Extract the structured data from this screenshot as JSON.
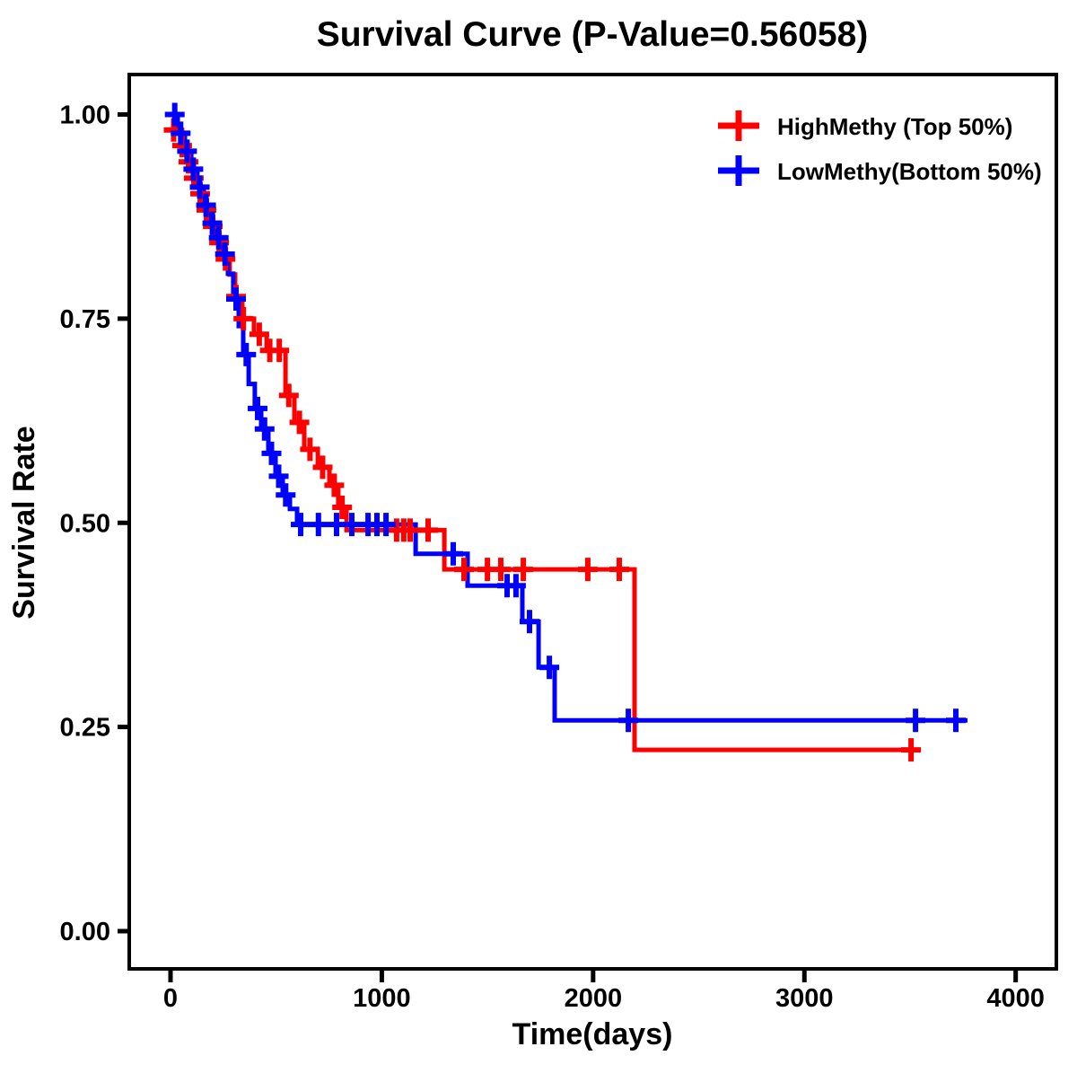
{
  "page": {
    "background": "#ffffff",
    "text_color": "#000000"
  },
  "chart_data": {
    "type": "line",
    "subtype": "kaplan-meier-step-survival",
    "title": "Survival Curve (P-Value=0.56058)",
    "p_value": "0.56058",
    "xlabel": "Time(days)",
    "ylabel": "Survival Rate",
    "xlim": [
      0,
      4000
    ],
    "ylim": [
      0.0,
      1.0
    ],
    "grid": false,
    "legend_position": "top-right-inside",
    "x_tick_values": [
      0,
      1000,
      2000,
      3000,
      4000
    ],
    "x_tick_labels": [
      "0",
      "1000",
      "2000",
      "3000",
      "4000"
    ],
    "y_tick_values": [
      0.0,
      0.25,
      0.5,
      0.75,
      1.0
    ],
    "y_tick_labels": [
      "0.00",
      "0.25",
      "0.50",
      "0.75",
      "1.00"
    ],
    "series": [
      {
        "name": "HighMethy (Top 50%)",
        "color": "#ff0000",
        "marker": "plus-censor",
        "steps": [
          [
            0,
            1.0
          ],
          [
            30,
            0.981
          ],
          [
            55,
            0.962
          ],
          [
            81,
            0.942
          ],
          [
            106,
            0.922
          ],
          [
            136,
            0.903
          ],
          [
            166,
            0.883
          ],
          [
            195,
            0.863
          ],
          [
            225,
            0.843
          ],
          [
            255,
            0.823
          ],
          [
            280,
            0.804
          ],
          [
            306,
            0.777
          ],
          [
            340,
            0.75
          ],
          [
            395,
            0.731
          ],
          [
            455,
            0.711
          ],
          [
            544,
            0.656
          ],
          [
            586,
            0.623
          ],
          [
            633,
            0.59
          ],
          [
            697,
            0.568
          ],
          [
            752,
            0.546
          ],
          [
            794,
            0.519
          ],
          [
            833,
            0.491
          ],
          [
            1296,
            0.443
          ],
          [
            2196,
            0.222
          ],
          [
            3547,
            0.222
          ]
        ],
        "censors": [
          [
            15,
            0.981
          ],
          [
            55,
            0.962
          ],
          [
            85,
            0.942
          ],
          [
            110,
            0.922
          ],
          [
            140,
            0.903
          ],
          [
            170,
            0.883
          ],
          [
            200,
            0.863
          ],
          [
            230,
            0.843
          ],
          [
            260,
            0.823
          ],
          [
            310,
            0.777
          ],
          [
            345,
            0.75
          ],
          [
            420,
            0.731
          ],
          [
            470,
            0.711
          ],
          [
            515,
            0.711
          ],
          [
            560,
            0.656
          ],
          [
            610,
            0.623
          ],
          [
            660,
            0.59
          ],
          [
            720,
            0.568
          ],
          [
            775,
            0.546
          ],
          [
            812,
            0.519
          ],
          [
            1070,
            0.491
          ],
          [
            1104,
            0.491
          ],
          [
            1134,
            0.491
          ],
          [
            1219,
            0.491
          ],
          [
            1389,
            0.443
          ],
          [
            1500,
            0.443
          ],
          [
            1563,
            0.443
          ],
          [
            1670,
            0.443
          ],
          [
            1975,
            0.443
          ],
          [
            2124,
            0.443
          ],
          [
            3505,
            0.222
          ]
        ]
      },
      {
        "name": "LowMethy(Bottom 50%)",
        "color": "#0000ff",
        "marker": "plus-censor",
        "steps": [
          [
            0,
            1.0
          ],
          [
            34,
            0.977
          ],
          [
            68,
            0.955
          ],
          [
            98,
            0.933
          ],
          [
            127,
            0.911
          ],
          [
            157,
            0.889
          ],
          [
            187,
            0.867
          ],
          [
            217,
            0.849
          ],
          [
            246,
            0.829
          ],
          [
            272,
            0.805
          ],
          [
            297,
            0.774
          ],
          [
            323,
            0.741
          ],
          [
            344,
            0.706
          ],
          [
            370,
            0.67
          ],
          [
            399,
            0.64
          ],
          [
            429,
            0.615
          ],
          [
            463,
            0.585
          ],
          [
            497,
            0.557
          ],
          [
            531,
            0.534
          ],
          [
            565,
            0.517
          ],
          [
            599,
            0.498
          ],
          [
            1160,
            0.462
          ],
          [
            1406,
            0.423
          ],
          [
            1665,
            0.379
          ],
          [
            1742,
            0.323
          ],
          [
            1818,
            0.258
          ],
          [
            3772,
            0.258
          ]
        ],
        "censors": [
          [
            20,
            1.0
          ],
          [
            48,
            0.977
          ],
          [
            78,
            0.955
          ],
          [
            108,
            0.933
          ],
          [
            138,
            0.911
          ],
          [
            168,
            0.889
          ],
          [
            198,
            0.867
          ],
          [
            228,
            0.849
          ],
          [
            258,
            0.829
          ],
          [
            310,
            0.774
          ],
          [
            358,
            0.706
          ],
          [
            412,
            0.64
          ],
          [
            445,
            0.615
          ],
          [
            478,
            0.585
          ],
          [
            512,
            0.557
          ],
          [
            545,
            0.534
          ],
          [
            616,
            0.498
          ],
          [
            700,
            0.498
          ],
          [
            786,
            0.498
          ],
          [
            858,
            0.498
          ],
          [
            935,
            0.498
          ],
          [
            977,
            0.498
          ],
          [
            1020,
            0.498
          ],
          [
            1338,
            0.462
          ],
          [
            1593,
            0.423
          ],
          [
            1635,
            0.423
          ],
          [
            1699,
            0.379
          ],
          [
            1793,
            0.323
          ],
          [
            2167,
            0.258
          ],
          [
            3526,
            0.258
          ],
          [
            3717,
            0.258
          ]
        ]
      }
    ]
  }
}
